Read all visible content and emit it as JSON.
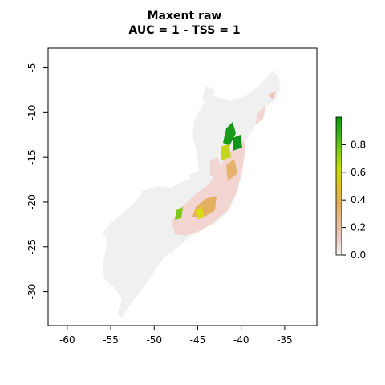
{
  "title": "Maxent raw",
  "subtitle": "AUC = 1 - TSS = 1",
  "map": {
    "x_axis": {
      "ticks": [
        -60,
        -55,
        -50,
        -45,
        -40,
        -35
      ],
      "range": [
        -62.2,
        -31.3
      ]
    },
    "y_axis": {
      "ticks": [
        -5,
        -10,
        -15,
        -20,
        -25,
        -30
      ],
      "range": [
        -33.8,
        -2.8
      ]
    },
    "background_region_color": "#f0f0f0",
    "suitability_palette": [
      "#f2d5d0",
      "#e8b98e",
      "#e0b03e",
      "#d8dc10",
      "#7ec817",
      "#1a9a1a"
    ]
  },
  "legend": {
    "ticks": [
      "0.0",
      "0.2",
      "0.4",
      "0.6",
      "0.8"
    ],
    "tick_values": [
      0.0,
      0.2,
      0.4,
      0.6,
      0.8
    ],
    "range": [
      0,
      1
    ],
    "colors": [
      "#f2f2f2",
      "#ecc9c2",
      "#e6b894",
      "#e0ac5c",
      "#dcc223",
      "#c8dc0a",
      "#82cd18",
      "#3bb01a",
      "#0f9610"
    ]
  }
}
